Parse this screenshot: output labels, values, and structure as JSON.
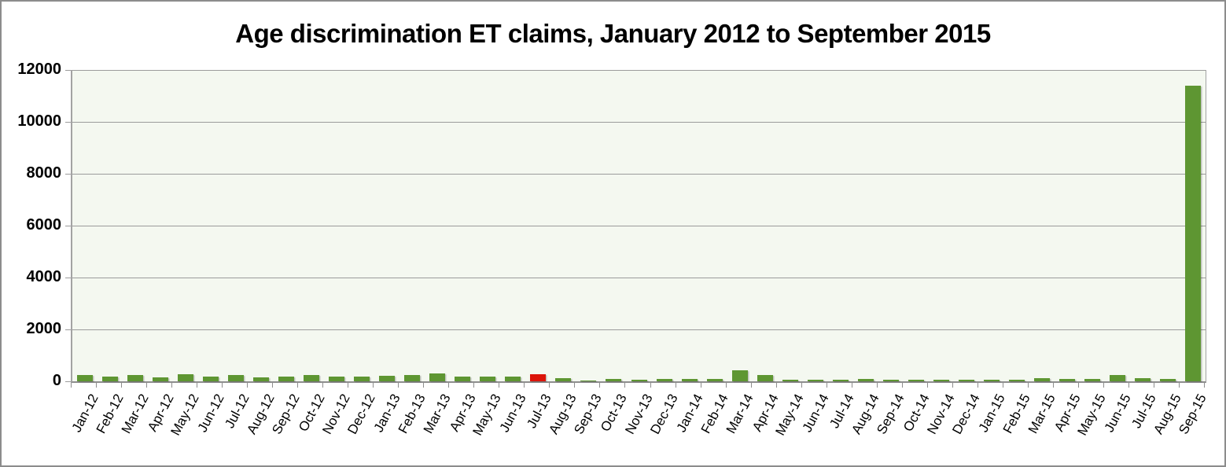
{
  "window": {
    "border_color": "#8c8c8c",
    "background": "#ffffff"
  },
  "chart_data": {
    "type": "bar",
    "title": "Age discrimination ET claims, January 2012 to September 2015",
    "categories": [
      "Jan-12",
      "Feb-12",
      "Mar-12",
      "Apr-12",
      "May-12",
      "Jun-12",
      "Jul-12",
      "Aug-12",
      "Sep-12",
      "Oct-12",
      "Nov-12",
      "Dec-12",
      "Jan-13",
      "Feb-13",
      "Mar-13",
      "Apr-13",
      "May-13",
      "Jun-13",
      "Jul-13",
      "Aug-13",
      "Sep-13",
      "Oct-13",
      "Nov-13",
      "Dec-13",
      "Jan-14",
      "Feb-14",
      "Mar-14",
      "Apr-14",
      "May-14",
      "Jun-14",
      "Jul-14",
      "Aug-14",
      "Sep-14",
      "Oct-14",
      "Nov-14",
      "Dec-14",
      "Jan-15",
      "Feb-15",
      "Mar-15",
      "Apr-15",
      "May-15",
      "Jun-15",
      "Jul-15",
      "Aug-15",
      "Sep-15"
    ],
    "values": [
      240,
      190,
      240,
      160,
      270,
      190,
      240,
      160,
      180,
      240,
      180,
      180,
      210,
      230,
      300,
      180,
      180,
      180,
      280,
      130,
      30,
      80,
      60,
      80,
      90,
      90,
      410,
      250,
      50,
      70,
      70,
      90,
      70,
      60,
      60,
      70,
      70,
      70,
      110,
      90,
      90,
      240,
      110,
      80,
      11400
    ],
    "highlight_category": "Jul-13",
    "highlight_index": 18,
    "bar_color": "#5e9632",
    "highlight_color": "#dc140a",
    "plot_background": "#f4f8f0",
    "gridline_color": "#9b9b9b",
    "axis_color": "#8e8e8e",
    "xlabel": "",
    "ylabel": "",
    "ylim": [
      0,
      12000
    ],
    "yticks": [
      0,
      2000,
      4000,
      6000,
      8000,
      10000,
      12000
    ],
    "grid": true,
    "legend": "none"
  }
}
